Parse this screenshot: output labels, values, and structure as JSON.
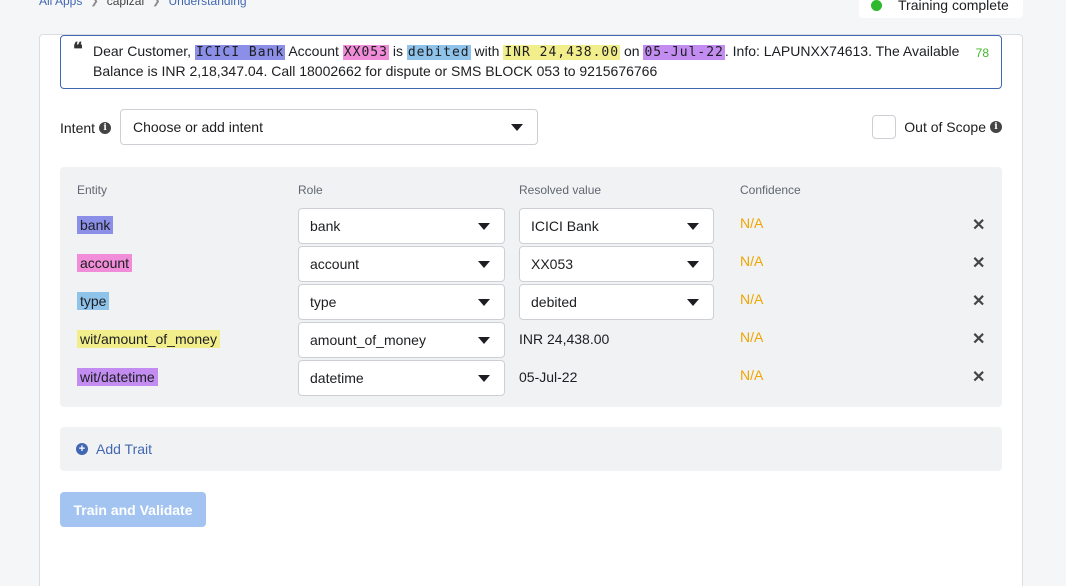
{
  "breadcrumb": {
    "items": [
      "All Apps",
      "capizal",
      "Understanding"
    ]
  },
  "training_status": {
    "label": "Training complete",
    "color": "#2eb82e"
  },
  "utterance": {
    "segments": [
      {
        "text": "Dear Customer, ",
        "tag": null
      },
      {
        "text": "ICICI Bank",
        "tag": "bank"
      },
      {
        "text": " Account ",
        "tag": null
      },
      {
        "text": "XX053",
        "tag": "account"
      },
      {
        "text": " is ",
        "tag": null
      },
      {
        "text": "debited",
        "tag": "type"
      },
      {
        "text": " with ",
        "tag": null
      },
      {
        "text": "INR 24,438.00",
        "tag": "money"
      },
      {
        "text": " on ",
        "tag": null
      },
      {
        "text": "05-Jul-22",
        "tag": "date"
      },
      {
        "text": ". Info: LAPUNXX74613. The Available Balance is INR 2,18,347.04. Call 18002662 for dispute or SMS BLOCK 053 to 9215676766",
        "tag": null
      }
    ],
    "char_count": "78"
  },
  "intent": {
    "label": "Intent",
    "placeholder": "Choose or add intent"
  },
  "out_of_scope": {
    "label": "Out of Scope"
  },
  "entities": {
    "headers": {
      "entity": "Entity",
      "role": "Role",
      "resolved": "Resolved value",
      "confidence": "Confidence"
    },
    "rows": [
      {
        "entity": "bank",
        "role": "bank",
        "resolved": "ICICI Bank",
        "resolved_is_select": true,
        "confidence": "N/A",
        "color": "#8c8fe8"
      },
      {
        "entity": "account",
        "role": "account",
        "resolved": "XX053",
        "resolved_is_select": true,
        "confidence": "N/A",
        "color": "#f08cd8"
      },
      {
        "entity": "type",
        "role": "type",
        "resolved": "debited",
        "resolved_is_select": true,
        "confidence": "N/A",
        "color": "#8fc3ea"
      },
      {
        "entity": "wit/amount_of_money",
        "role": "amount_of_money",
        "resolved": "INR 24,438.00",
        "resolved_is_select": false,
        "confidence": "N/A",
        "color": "#f2ee8c"
      },
      {
        "entity": "wit/datetime",
        "role": "datetime",
        "resolved": "05-Jul-22",
        "resolved_is_select": false,
        "confidence": "N/A",
        "color": "#c38cf0"
      }
    ]
  },
  "add_trait": {
    "label": "Add Trait"
  },
  "train_button": {
    "label": "Train and Validate"
  }
}
